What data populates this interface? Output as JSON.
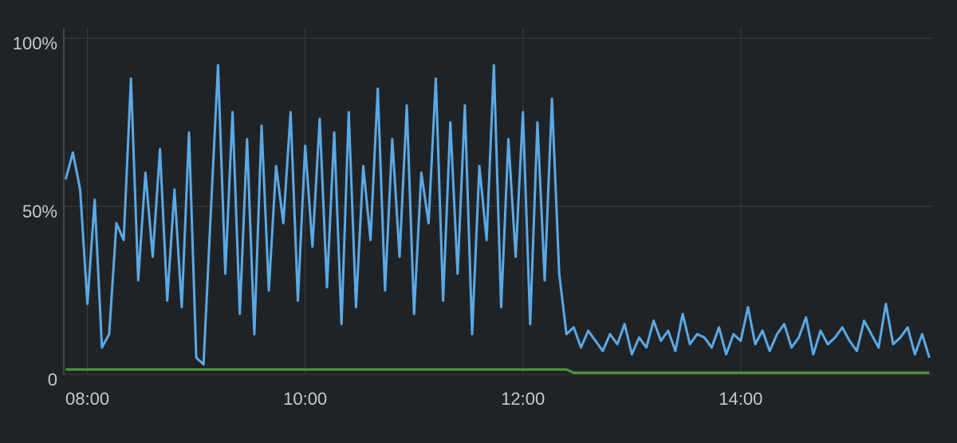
{
  "chart_data": {
    "type": "line",
    "x": [
      468,
      472,
      476,
      480,
      484,
      488,
      492,
      496,
      500,
      504,
      508,
      512,
      516,
      520,
      524,
      528,
      532,
      536,
      540,
      544,
      548,
      552,
      556,
      560,
      564,
      568,
      572,
      576,
      580,
      584,
      588,
      592,
      596,
      600,
      604,
      608,
      612,
      616,
      620,
      624,
      628,
      632,
      636,
      640,
      644,
      648,
      652,
      656,
      660,
      664,
      668,
      672,
      676,
      680,
      684,
      688,
      692,
      696,
      700,
      704,
      708,
      712,
      716,
      720,
      724,
      728,
      732,
      736,
      740,
      744,
      748,
      752,
      756,
      760,
      764,
      768,
      772,
      776,
      780,
      784,
      788,
      792,
      796,
      800,
      804,
      808,
      812,
      816,
      820,
      824,
      828,
      832,
      836,
      840,
      844,
      848,
      852,
      856,
      860,
      864,
      868,
      872,
      876,
      880,
      884,
      888,
      892,
      896,
      900,
      904,
      908,
      912,
      916,
      920,
      924,
      928,
      932,
      936,
      940,
      944
    ],
    "series": [
      {
        "color": "#5aa9e6",
        "values": [
          58,
          66,
          55,
          21,
          52,
          8,
          12,
          45,
          40,
          88,
          28,
          60,
          35,
          67,
          22,
          55,
          20,
          72,
          5,
          3,
          48,
          92,
          30,
          78,
          18,
          70,
          12,
          74,
          25,
          62,
          45,
          78,
          22,
          68,
          38,
          76,
          26,
          72,
          15,
          78,
          20,
          62,
          40,
          85,
          25,
          70,
          35,
          80,
          18,
          60,
          45,
          88,
          22,
          75,
          30,
          80,
          12,
          62,
          40,
          92,
          20,
          70,
          35,
          78,
          15,
          75,
          28,
          82,
          30,
          12,
          14,
          8,
          13,
          10,
          7,
          12,
          9,
          15,
          6,
          11,
          8,
          16,
          10,
          13,
          7,
          18,
          9,
          12,
          11,
          8,
          14,
          6,
          12,
          10,
          20,
          9,
          13,
          7,
          12,
          15,
          8,
          11,
          17,
          6,
          13,
          9,
          11,
          14,
          10,
          7,
          16,
          12,
          8,
          21,
          9,
          11,
          14,
          6,
          12,
          5
        ]
      },
      {
        "color": "#4c9a3f",
        "values": [
          1.5,
          1.5,
          1.5,
          1.5,
          1.5,
          1.5,
          1.5,
          1.5,
          1.5,
          1.5,
          1.5,
          1.5,
          1.5,
          1.5,
          1.5,
          1.5,
          1.5,
          1.5,
          1.5,
          1.5,
          1.5,
          1.5,
          1.5,
          1.5,
          1.5,
          1.5,
          1.5,
          1.5,
          1.5,
          1.5,
          1.5,
          1.5,
          1.5,
          1.5,
          1.5,
          1.5,
          1.5,
          1.5,
          1.5,
          1.5,
          1.5,
          1.5,
          1.5,
          1.5,
          1.5,
          1.5,
          1.5,
          1.5,
          1.5,
          1.5,
          1.5,
          1.5,
          1.5,
          1.5,
          1.5,
          1.5,
          1.5,
          1.5,
          1.5,
          1.5,
          1.5,
          1.5,
          1.5,
          1.5,
          1.5,
          1.5,
          1.5,
          1.5,
          1.5,
          1.5,
          0.5,
          0.5,
          0.5,
          0.5,
          0.5,
          0.5,
          0.5,
          0.5,
          0.5,
          0.5,
          0.5,
          0.5,
          0.5,
          0.5,
          0.5,
          0.5,
          0.5,
          0.5,
          0.5,
          0.5,
          0.5,
          0.5,
          0.5,
          0.5,
          0.5,
          0.5,
          0.5,
          0.5,
          0.5,
          0.5,
          0.5,
          0.5,
          0.5,
          0.5,
          0.5,
          0.5,
          0.5,
          0.5,
          0.5,
          0.5,
          0.5,
          0.5,
          0.5,
          0.5,
          0.5,
          0.5,
          0.5,
          0.5,
          0.5,
          0.5
        ]
      }
    ],
    "xlim": [
      467,
      946
    ],
    "xticks": [
      {
        "value": 480,
        "label": "08:00"
      },
      {
        "value": 600,
        "label": "10:00"
      },
      {
        "value": 720,
        "label": "12:00"
      },
      {
        "value": 840,
        "label": "14:00"
      }
    ],
    "ylim": [
      0,
      100
    ],
    "yticks": [
      0,
      {
        "value": 50,
        "label": "50%"
      },
      {
        "value": 100,
        "label": "100%"
      }
    ],
    "grid": true
  }
}
